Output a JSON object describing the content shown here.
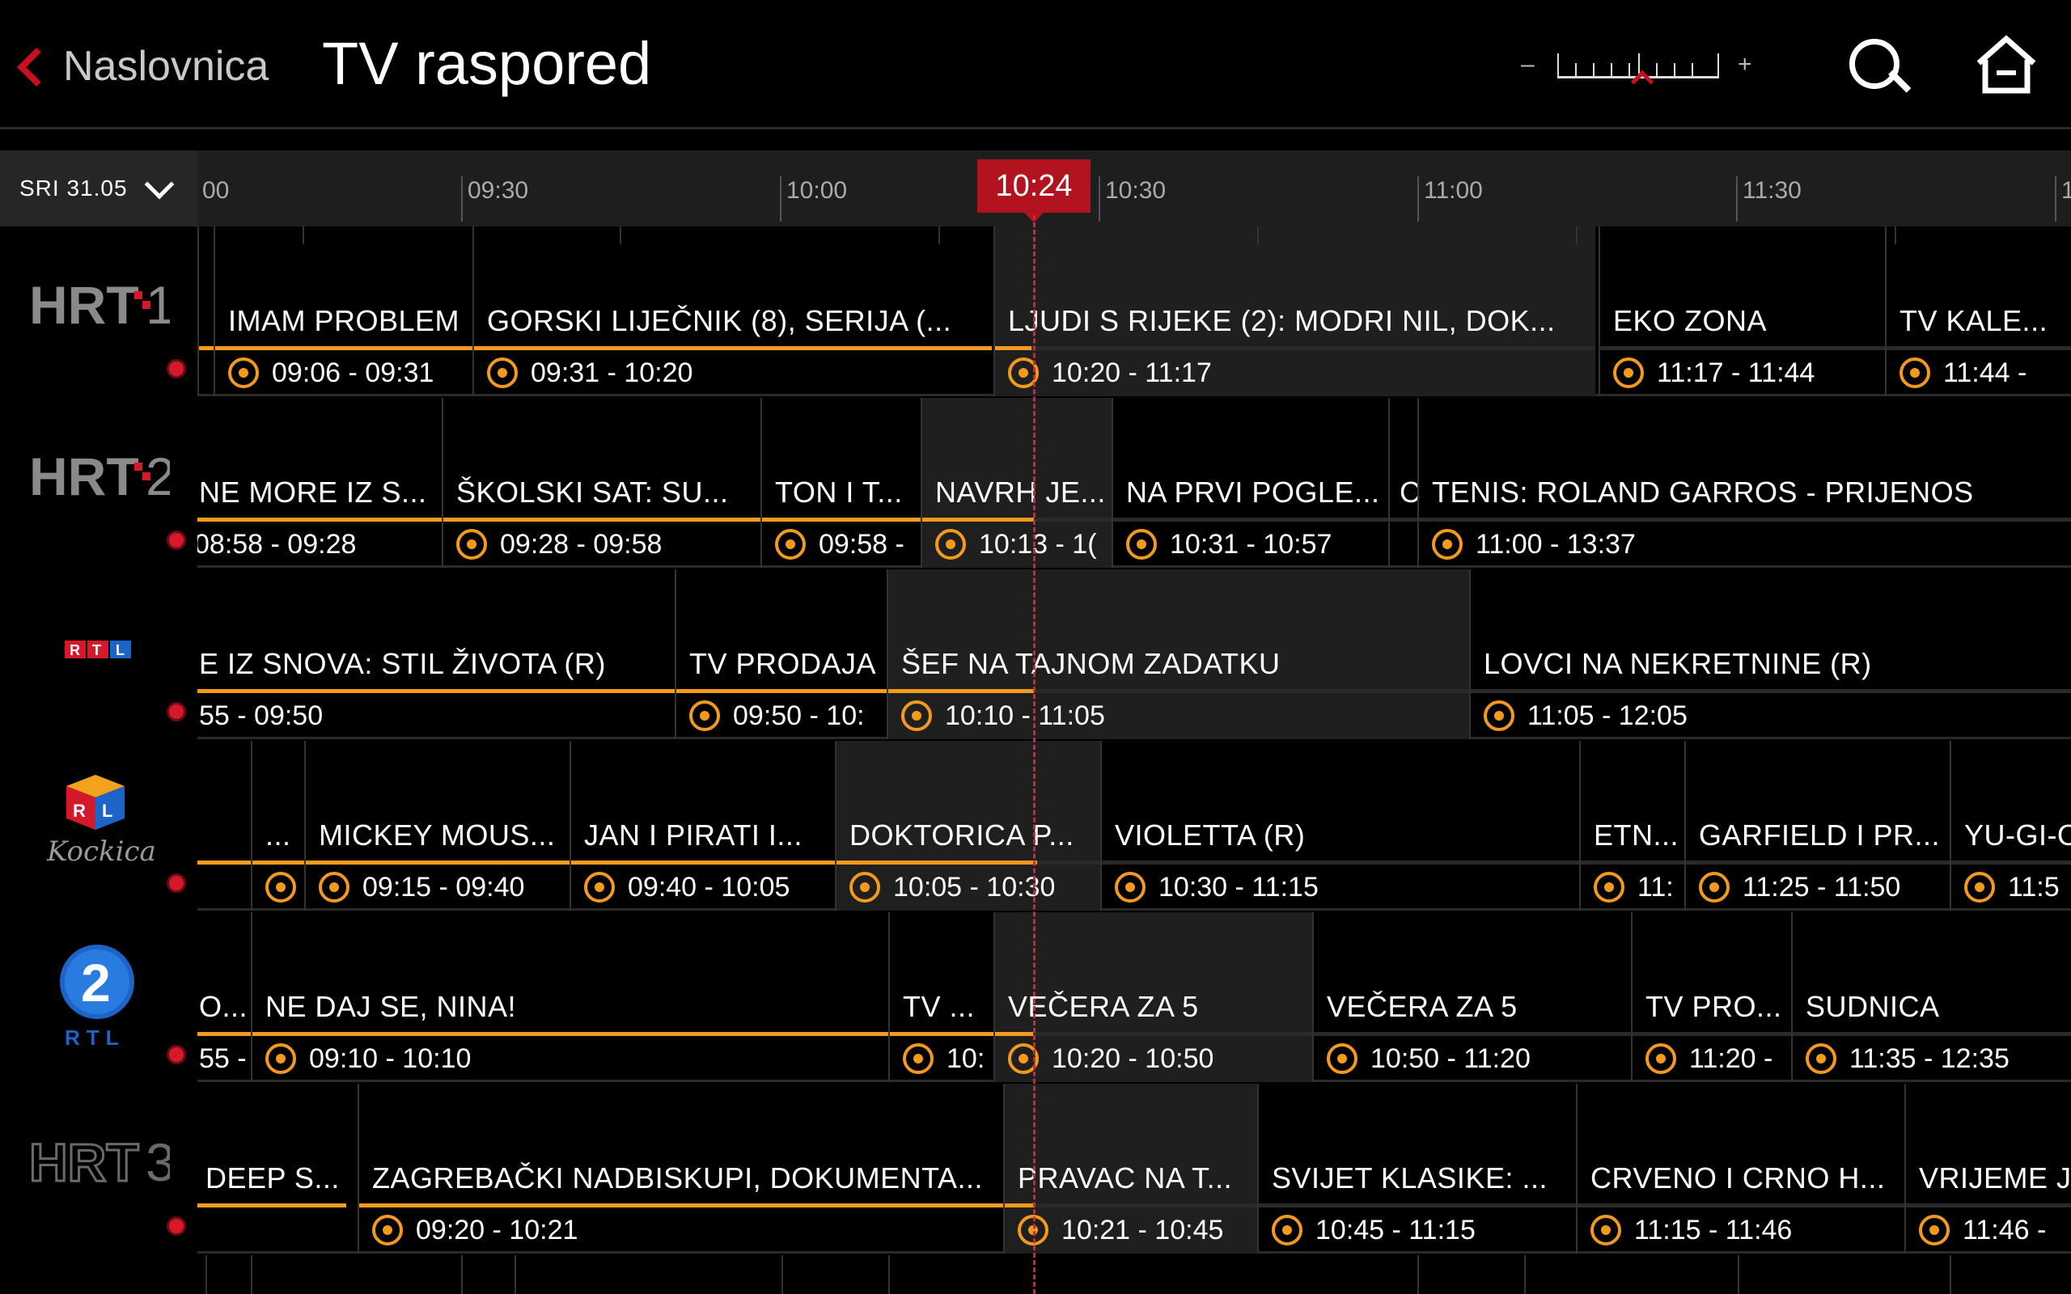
{
  "header": {
    "back_label": "Naslovnica",
    "title": "TV raspored",
    "zoom_minus": "–",
    "zoom_plus": "+"
  },
  "timeline": {
    "date": "SRI 31.05",
    "now": "10:24",
    "times": [
      "00",
      "09:30",
      "10:00",
      "10:30",
      "11:00",
      "11:30",
      "1"
    ]
  },
  "channels": [
    {
      "name": "HRT 1",
      "programs": [
        {
          "title": "IMAM PROBLEM",
          "time": "09:06 - 09:31"
        },
        {
          "title": "GORSKI LIJEČNIK (8), SERIJA (...",
          "time": "09:31 - 10:20"
        },
        {
          "title": "LJUDI S RIJEKE (2): MODRI NIL, DOK...",
          "time": "10:20 - 11:17"
        },
        {
          "title": "EKO ZONA",
          "time": "11:17 - 11:44"
        },
        {
          "title": "TV KALE...",
          "time": "11:44 -"
        }
      ]
    },
    {
      "name": "HRT 2",
      "programs": [
        {
          "title": "NE MORE IZ S...",
          "time": "08:58 - 09:28"
        },
        {
          "title": "ŠKOLSKI SAT: SU...",
          "time": "09:28 - 09:58"
        },
        {
          "title": "TON I T...",
          "time": "09:58 -"
        },
        {
          "title": "NAVRH JE...",
          "time": "10:13 - 1("
        },
        {
          "title": "NA PRVI POGLE...",
          "time": "10:31 - 10:57"
        },
        {
          "title": "C",
          "time": ""
        },
        {
          "title": "TENIS: ROLAND GARROS - PRIJENOS",
          "time": "11:00 - 13:37"
        }
      ]
    },
    {
      "name": "RTL",
      "programs": [
        {
          "title": "E IZ SNOVA: STIL ŽIVOTA (R)",
          "time": "55 - 09:50"
        },
        {
          "title": "TV PRODAJA",
          "time": "09:50 - 10:"
        },
        {
          "title": "ŠEF NA TAJNOM ZADATKU",
          "time": "10:10 - 11:05"
        },
        {
          "title": "LOVCI NA NEKRETNINE (R)",
          "time": "11:05 - 12:05"
        }
      ]
    },
    {
      "name": "Kockica",
      "programs": [
        {
          "title": "",
          "time": ""
        },
        {
          "title": "...",
          "time": ""
        },
        {
          "title": "MICKEY MOUS...",
          "time": "09:15 - 09:40"
        },
        {
          "title": "JAN I PIRATI I...",
          "time": "09:40 - 10:05"
        },
        {
          "title": "DOKTORICA P...",
          "time": "10:05 - 10:30"
        },
        {
          "title": "VIOLETTA (R)",
          "time": "10:30 - 11:15"
        },
        {
          "title": "ETN...",
          "time": "11:"
        },
        {
          "title": "GARFIELD I PR...",
          "time": "11:25 - 11:50"
        },
        {
          "title": "YU-GI-O",
          "time": "11:5"
        }
      ]
    },
    {
      "name": "RTL 2",
      "programs": [
        {
          "title": "O...",
          "time": "55 -"
        },
        {
          "title": "NE DAJ SE, NINA!",
          "time": "09:10 - 10:10"
        },
        {
          "title": "TV ...",
          "time": "10:"
        },
        {
          "title": "VEČERA ZA 5",
          "time": "10:20 - 10:50"
        },
        {
          "title": "VEČERA ZA 5",
          "time": "10:50 - 11:20"
        },
        {
          "title": "TV PRO...",
          "time": "11:20 -"
        },
        {
          "title": "SUDNICA",
          "time": "11:35 - 12:35"
        }
      ]
    },
    {
      "name": "HRT 3",
      "programs": [
        {
          "title": "DEEP S...",
          "time": ""
        },
        {
          "title": "ZAGREBAČKI NADBISKUPI, DOKUMENTA...",
          "time": "09:20 - 10:21"
        },
        {
          "title": "PRAVAC NA T...",
          "time": "10:21 - 10:45"
        },
        {
          "title": "SVIJET KLASIKE: ...",
          "time": "10:45 - 11:15"
        },
        {
          "title": "CRVENO I CRNO H...",
          "time": "11:15 - 11:46"
        },
        {
          "title": "VRIJEME J",
          "time": "11:46 -"
        }
      ]
    }
  ],
  "colors": {
    "accent": "#f39a1c",
    "now": "#b3131f",
    "back": "#c8101e"
  }
}
